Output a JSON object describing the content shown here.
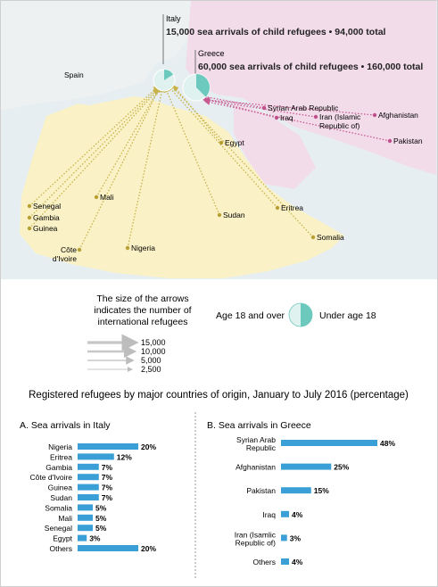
{
  "map": {
    "italy": {
      "label": "Italy",
      "summary": "15,000 sea arrivals of child refugees • 94,000 total"
    },
    "greece": {
      "label": "Greece",
      "summary": "60,000 sea arrivals of child refugees • 160,000 total"
    },
    "places": [
      {
        "id": "spain",
        "label": "Spain",
        "dot": false
      },
      {
        "id": "syria",
        "label": "Syrian Arab Republic",
        "dot": true,
        "region": "asia"
      },
      {
        "id": "iraq",
        "label": "Iraq",
        "dot": true,
        "region": "asia"
      },
      {
        "id": "iran",
        "label": "Iran (Islamic\nRepublic of)",
        "dot": true,
        "region": "asia"
      },
      {
        "id": "afghanistan",
        "label": "Afghanistan",
        "dot": true,
        "region": "asia"
      },
      {
        "id": "pakistan",
        "label": "Pakistan",
        "dot": true,
        "region": "asia"
      },
      {
        "id": "egypt",
        "label": "Egypt",
        "dot": true,
        "region": "africa"
      },
      {
        "id": "mali",
        "label": "Mali",
        "dot": true,
        "region": "africa"
      },
      {
        "id": "senegal",
        "label": "Senegal",
        "dot": true,
        "region": "africa"
      },
      {
        "id": "gambia",
        "label": "Gambia",
        "dot": true,
        "region": "africa"
      },
      {
        "id": "guinea",
        "label": "Guinea",
        "dot": true,
        "region": "africa"
      },
      {
        "id": "cotedivoire",
        "label": "Côte\nd'Ivoire",
        "dot": true,
        "region": "africa"
      },
      {
        "id": "nigeria",
        "label": "Nigeria",
        "dot": true,
        "region": "africa"
      },
      {
        "id": "sudan",
        "label": "Sudan",
        "dot": true,
        "region": "africa"
      },
      {
        "id": "eritrea",
        "label": "Eritrea",
        "dot": true,
        "region": "africa"
      },
      {
        "id": "somalia",
        "label": "Somalia",
        "dot": true,
        "region": "africa"
      }
    ]
  },
  "legend": {
    "arrows_note": "The size of the arrows\nindicates the number of\ninternational refugees",
    "arrow_scale": [
      "15,000",
      "10,000",
      "5,000",
      "2,500"
    ],
    "age_over": "Age 18 and over",
    "age_under": "Under age 18"
  },
  "colors": {
    "bar": "#3a9fd6",
    "africa_land": "#faf2c6",
    "asia_land": "#f3dcea",
    "sea": "#e6eef1",
    "pie_light": "#dff2ef",
    "pie_dark": "#6cc9bd",
    "africa_dot": "#b7a033",
    "asia_dot": "#c0508a"
  },
  "chart_data": [
    {
      "type": "bar",
      "title": "A. Sea arrivals in Italy",
      "categories": [
        "Nigeria",
        "Eritrea",
        "Gambia",
        "Côte d'Ivoire",
        "Guinea",
        "Sudan",
        "Somalia",
        "Mali",
        "Senegal",
        "Egypt",
        "Others"
      ],
      "values": [
        20,
        12,
        7,
        7,
        7,
        7,
        5,
        5,
        5,
        3,
        20
      ],
      "value_labels": [
        "20%",
        "12%",
        "7%",
        "7%",
        "7%",
        "7%",
        "5%",
        "5%",
        "5%",
        "3%",
        "20%"
      ]
    },
    {
      "type": "bar",
      "title": "B. Sea arrivals in Greece",
      "categories": [
        "Syrian Arab\nRepublic",
        "Afghanistan",
        "Pakistan",
        "Iraq",
        "Iran (Isamlic\nRepublic of)",
        "Others"
      ],
      "values": [
        48,
        25,
        15,
        4,
        3,
        4
      ],
      "value_labels": [
        "48%",
        "25%",
        "15%",
        "4%",
        "3%",
        "4%"
      ]
    }
  ],
  "charts_heading": "Registered refugees by major countries of origin, January to July 2016 (percentage)"
}
